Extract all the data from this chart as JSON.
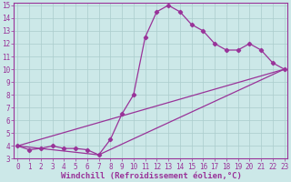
{
  "line1_x": [
    0,
    1,
    2,
    3,
    4,
    5,
    6,
    7,
    8,
    9,
    10,
    11,
    12,
    13,
    14,
    15,
    16,
    17,
    18,
    19,
    20,
    21,
    22,
    23
  ],
  "line1_y": [
    4.0,
    3.7,
    3.8,
    4.0,
    3.8,
    3.8,
    3.7,
    3.3,
    4.5,
    6.5,
    8.0,
    12.5,
    14.5,
    15.0,
    14.5,
    13.5,
    13.0,
    12.0,
    11.5,
    11.5,
    12.0,
    11.5,
    10.5,
    10.0
  ],
  "line2_x": [
    0,
    23
  ],
  "line2_y": [
    4.0,
    10.0
  ],
  "line3_x": [
    0,
    7,
    23
  ],
  "line3_y": [
    4.0,
    3.3,
    10.0
  ],
  "line_color": "#993399",
  "bg_color": "#cce8e8",
  "grid_color": "#aacccc",
  "xlabel": "Windchill (Refroidissement éolien,°C)",
  "ylabel": "",
  "xlim": [
    -0.3,
    23.3
  ],
  "ylim": [
    3,
    15.2
  ],
  "xticks": [
    0,
    1,
    2,
    3,
    4,
    5,
    6,
    7,
    8,
    9,
    10,
    11,
    12,
    13,
    14,
    15,
    16,
    17,
    18,
    19,
    20,
    21,
    22,
    23
  ],
  "yticks": [
    3,
    4,
    5,
    6,
    7,
    8,
    9,
    10,
    11,
    12,
    13,
    14,
    15
  ],
  "marker": "D",
  "markersize": 2.2,
  "linewidth": 0.9,
  "xlabel_fontsize": 6.5,
  "tick_fontsize": 5.5,
  "axis_label_color": "#993399",
  "tick_color": "#993399"
}
